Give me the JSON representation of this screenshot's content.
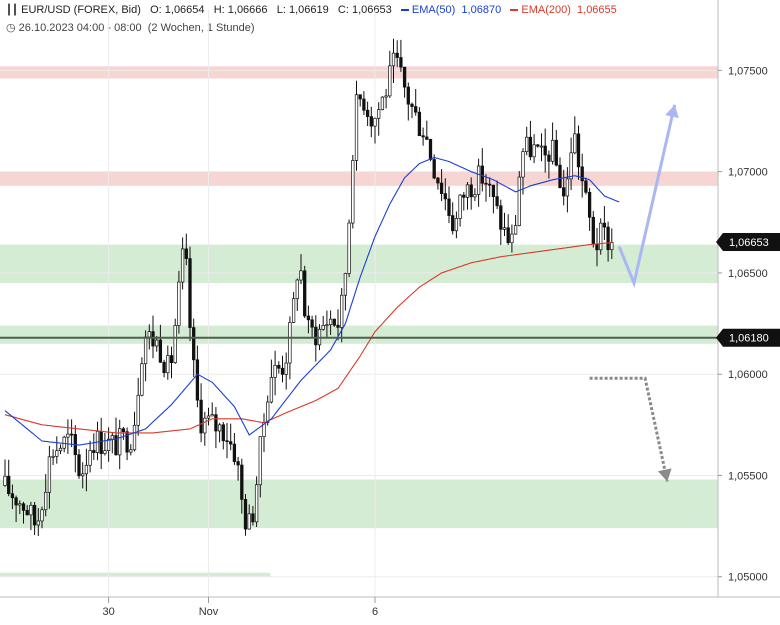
{
  "header": {
    "symbol": "EUR/USD (FOREX, Bid)",
    "open_label": "O:",
    "open": "1,06654",
    "high_label": "H:",
    "high": "1,06666",
    "low_label": "L:",
    "low": "1,06619",
    "close_label": "C:",
    "close": "1,06653",
    "ema50_label": "EMA(50)",
    "ema50_value": "1,06870",
    "ema200_label": "EMA(200)",
    "ema200_value": "1,06655",
    "date_range": "26.10.2023 04:00 - 08:00",
    "period": "(2 Wochen, 1 Stunde)"
  },
  "colors": {
    "ema50": "#1a3fd6",
    "ema200": "#d93a2b",
    "resistance_zone": "#f6d5d3",
    "support_zone": "#d3ecd3",
    "level_line": "#4f5e4f",
    "price_tag": "#111111",
    "up_arrow": "#a9b8f2",
    "down_arrow": "#8a8a8a"
  },
  "chart_data": {
    "type": "candlestick",
    "ylim": [
      1.049,
      1.0765
    ],
    "y_ticks": [
      {
        "v": 1.075,
        "label": "1,07500"
      },
      {
        "v": 1.07,
        "label": "1,07000"
      },
      {
        "v": 1.065,
        "label": "1,06500"
      },
      {
        "v": 1.06,
        "label": "1,06000"
      },
      {
        "v": 1.055,
        "label": "1,05500"
      },
      {
        "v": 1.05,
        "label": "1,05000"
      }
    ],
    "x_ticks": [
      {
        "bar": 28,
        "label": "30"
      },
      {
        "bar": 55,
        "label": "Nov"
      },
      {
        "bar": 100,
        "label": "6"
      }
    ],
    "bar_count": 165,
    "price_path": [
      [
        0,
        1.0545
      ],
      [
        6,
        1.0535
      ],
      [
        9,
        1.0525
      ],
      [
        13,
        1.0562
      ],
      [
        18,
        1.0568
      ],
      [
        21,
        1.055
      ],
      [
        24,
        1.0568
      ],
      [
        30,
        1.0565
      ],
      [
        35,
        1.057
      ],
      [
        38,
        1.062
      ],
      [
        42,
        1.0615
      ],
      [
        45,
        1.06
      ],
      [
        49,
        1.0665
      ],
      [
        51,
        1.061
      ],
      [
        53,
        1.0578
      ],
      [
        57,
        1.0575
      ],
      [
        60,
        1.0572
      ],
      [
        63,
        1.056
      ],
      [
        65,
        1.053
      ],
      [
        67,
        1.0525
      ],
      [
        70,
        1.057
      ],
      [
        72,
        1.06
      ],
      [
        76,
        1.0605
      ],
      [
        78,
        1.0625
      ],
      [
        80,
        1.066
      ],
      [
        82,
        1.0622
      ],
      [
        85,
        1.062
      ],
      [
        88,
        1.0628
      ],
      [
        91,
        1.0625
      ],
      [
        93,
        1.066
      ],
      [
        95,
        1.073
      ],
      [
        97,
        1.0738
      ],
      [
        100,
        1.0725
      ],
      [
        103,
        1.0738
      ],
      [
        106,
        1.0755
      ],
      [
        109,
        1.0738
      ],
      [
        112,
        1.0725
      ],
      [
        114,
        1.072
      ],
      [
        116,
        1.0705
      ],
      [
        119,
        1.069
      ],
      [
        122,
        1.0672
      ],
      [
        124,
        1.0688
      ],
      [
        127,
        1.0695
      ],
      [
        130,
        1.0698
      ],
      [
        133,
        1.0682
      ],
      [
        136,
        1.0668
      ],
      [
        138,
        1.0665
      ],
      [
        140,
        1.071
      ],
      [
        143,
        1.0712
      ],
      [
        146,
        1.0705
      ],
      [
        148,
        1.0712
      ],
      [
        150,
        1.07
      ],
      [
        152,
        1.0685
      ],
      [
        154,
        1.0722
      ],
      [
        156,
        1.07
      ],
      [
        158,
        1.068
      ],
      [
        160,
        1.0663
      ],
      [
        162,
        1.067
      ],
      [
        164,
        1.0665
      ]
    ],
    "ema50": [
      [
        0,
        1.0582
      ],
      [
        10,
        1.0567
      ],
      [
        20,
        1.0565
      ],
      [
        30,
        1.0568
      ],
      [
        38,
        1.0573
      ],
      [
        45,
        1.0585
      ],
      [
        52,
        1.06
      ],
      [
        56,
        1.0596
      ],
      [
        62,
        1.0584
      ],
      [
        66,
        1.057
      ],
      [
        72,
        1.0578
      ],
      [
        80,
        1.0597
      ],
      [
        88,
        1.0612
      ],
      [
        92,
        1.0625
      ],
      [
        96,
        1.0648
      ],
      [
        100,
        1.0668
      ],
      [
        104,
        1.0684
      ],
      [
        108,
        1.0697
      ],
      [
        112,
        1.0704
      ],
      [
        116,
        1.0707
      ],
      [
        120,
        1.0705
      ],
      [
        126,
        1.07
      ],
      [
        132,
        1.0696
      ],
      [
        138,
        1.069
      ],
      [
        142,
        1.0693
      ],
      [
        148,
        1.0696
      ],
      [
        154,
        1.0698
      ],
      [
        158,
        1.0696
      ],
      [
        162,
        1.0688
      ],
      [
        166,
        1.0685
      ]
    ],
    "ema200": [
      [
        0,
        1.058
      ],
      [
        10,
        1.0575
      ],
      [
        20,
        1.0573
      ],
      [
        30,
        1.0571
      ],
      [
        40,
        1.0571
      ],
      [
        50,
        1.0573
      ],
      [
        56,
        1.0578
      ],
      [
        64,
        1.0578
      ],
      [
        70,
        1.0576
      ],
      [
        76,
        1.0581
      ],
      [
        84,
        1.0587
      ],
      [
        90,
        1.0593
      ],
      [
        96,
        1.0609
      ],
      [
        100,
        1.0621
      ],
      [
        106,
        1.0633
      ],
      [
        112,
        1.0643
      ],
      [
        118,
        1.065
      ],
      [
        126,
        1.0655
      ],
      [
        134,
        1.0658
      ],
      [
        142,
        1.066
      ],
      [
        150,
        1.0662
      ],
      [
        158,
        1.0664
      ],
      [
        164,
        1.0665
      ]
    ],
    "zones": [
      {
        "type": "resistance",
        "from": 1.0746,
        "to": 1.0752,
        "x_start": 0,
        "x_end": 1
      },
      {
        "type": "resistance",
        "from": 1.0693,
        "to": 1.07,
        "x_start": 0,
        "x_end": 1
      },
      {
        "type": "support",
        "from": 1.0645,
        "to": 1.0664,
        "x_start": 0,
        "x_end": 1
      },
      {
        "type": "support",
        "from": 1.0615,
        "to": 1.0624,
        "x_start": 0,
        "x_end": 1
      },
      {
        "type": "support",
        "from": 1.0524,
        "to": 1.0548,
        "x_start": 0,
        "x_end": 1
      },
      {
        "type": "support",
        "from": 1.05,
        "to": 1.0502,
        "x_start": 0,
        "x_end": 0.3765
      }
    ],
    "level_line": {
      "value": 1.0618,
      "label": "1,06180"
    },
    "last_price": {
      "value": 1.06653,
      "label": "1,06653"
    },
    "arrows": [
      {
        "kind": "up",
        "points": [
          [
            166,
            1.0663
          ],
          [
            170,
            1.0645
          ],
          [
            181,
            1.0733
          ]
        ]
      },
      {
        "kind": "down",
        "points": [
          [
            158,
            1.0598
          ],
          [
            173,
            1.0598
          ],
          [
            179,
            1.0547
          ]
        ]
      }
    ]
  }
}
